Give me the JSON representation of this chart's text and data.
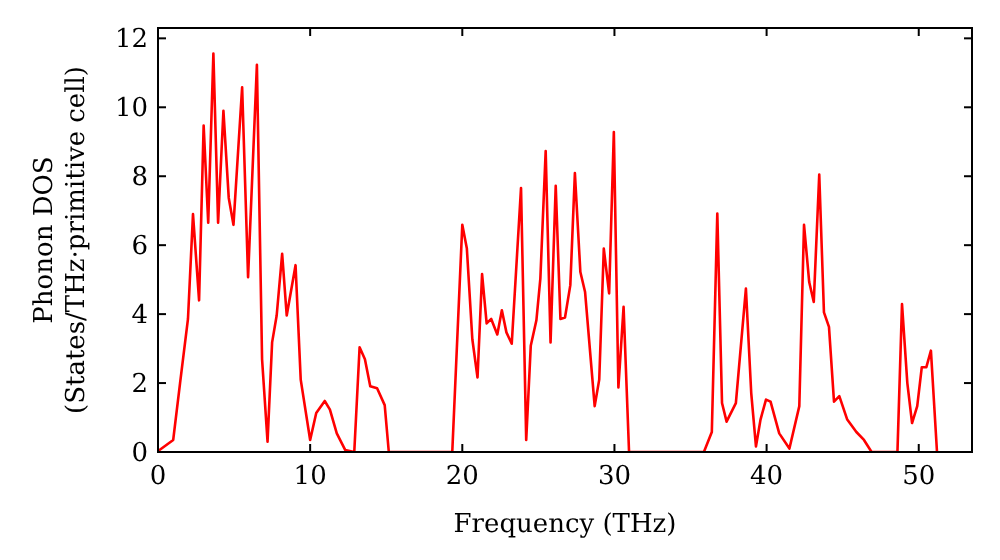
{
  "chart_data": {
    "type": "line",
    "xlabel": "Frequency (THz)",
    "ylabel": "Phonon DOS\n(States/THz·primitive cell)",
    "xlim": [
      0,
      53.5
    ],
    "ylim": [
      0,
      12.3
    ],
    "xticks": [
      0,
      10,
      20,
      30,
      40,
      50
    ],
    "yticks": [
      0,
      2,
      4,
      6,
      8,
      10,
      12
    ],
    "grid": false,
    "marker": "none",
    "line_style": "solid",
    "series": [
      {
        "color": "#ff0000",
        "x": [
          0,
          0.1,
          1.0,
          1.45,
          1.97,
          2.3,
          2.7,
          3.0,
          3.3,
          3.64,
          3.95,
          4.3,
          4.65,
          4.96,
          5.53,
          5.92,
          6.5,
          6.84,
          7.2,
          7.5,
          7.8,
          8.16,
          8.46,
          9.04,
          9.38,
          10.0,
          10.4,
          10.96,
          11.3,
          11.75,
          12.3,
          12.9,
          13.25,
          13.6,
          13.95,
          14.4,
          14.9,
          15.17,
          19.34,
          20.0,
          20.3,
          20.66,
          21.0,
          21.3,
          21.6,
          21.9,
          22.3,
          22.6,
          22.9,
          23.25,
          23.86,
          24.2,
          24.5,
          24.87,
          25.13,
          25.48,
          25.8,
          26.14,
          26.45,
          26.75,
          27.1,
          27.4,
          27.76,
          28.07,
          28.7,
          29.0,
          29.3,
          29.65,
          29.96,
          30.26,
          30.6,
          30.96,
          35.88,
          36.4,
          36.76,
          37.07,
          37.37,
          37.98,
          38.64,
          38.99,
          39.3,
          39.6,
          39.96,
          40.26,
          40.83,
          41.5,
          42.15,
          42.46,
          42.8,
          43.1,
          43.46,
          43.77,
          44.1,
          44.43,
          44.78,
          45.3,
          45.9,
          46.4,
          46.9,
          48.6,
          48.9,
          49.25,
          49.56,
          49.9,
          50.2,
          50.5,
          50.8,
          51.2
        ],
        "values": [
          0,
          0.06,
          0.35,
          2.0,
          3.86,
          6.9,
          4.4,
          9.47,
          6.65,
          11.56,
          6.65,
          9.9,
          7.37,
          6.59,
          10.58,
          5.07,
          11.23,
          2.69,
          0.3,
          3.18,
          3.96,
          5.75,
          3.96,
          5.42,
          2.1,
          0.35,
          1.13,
          1.48,
          1.23,
          0.54,
          0.06,
          0,
          3.04,
          2.69,
          1.91,
          1.85,
          1.36,
          0,
          0,
          6.59,
          5.9,
          3.27,
          2.16,
          5.16,
          3.73,
          3.86,
          3.41,
          4.11,
          3.47,
          3.14,
          7.66,
          0.35,
          3.08,
          3.82,
          5.03,
          8.73,
          3.18,
          7.72,
          3.86,
          3.9,
          4.84,
          8.09,
          5.22,
          4.64,
          1.33,
          2.1,
          5.9,
          4.6,
          9.28,
          1.87,
          4.21,
          0,
          0,
          0.58,
          6.92,
          1.42,
          0.88,
          1.42,
          4.74,
          1.71,
          0.16,
          0.94,
          1.52,
          1.46,
          0.54,
          0.1,
          1.33,
          6.59,
          4.93,
          4.35,
          8.05,
          4.05,
          3.63,
          1.46,
          1.62,
          0.94,
          0.58,
          0.35,
          0,
          0,
          4.29,
          2.0,
          0.84,
          1.33,
          2.46,
          2.46,
          2.94,
          0
        ]
      }
    ]
  }
}
